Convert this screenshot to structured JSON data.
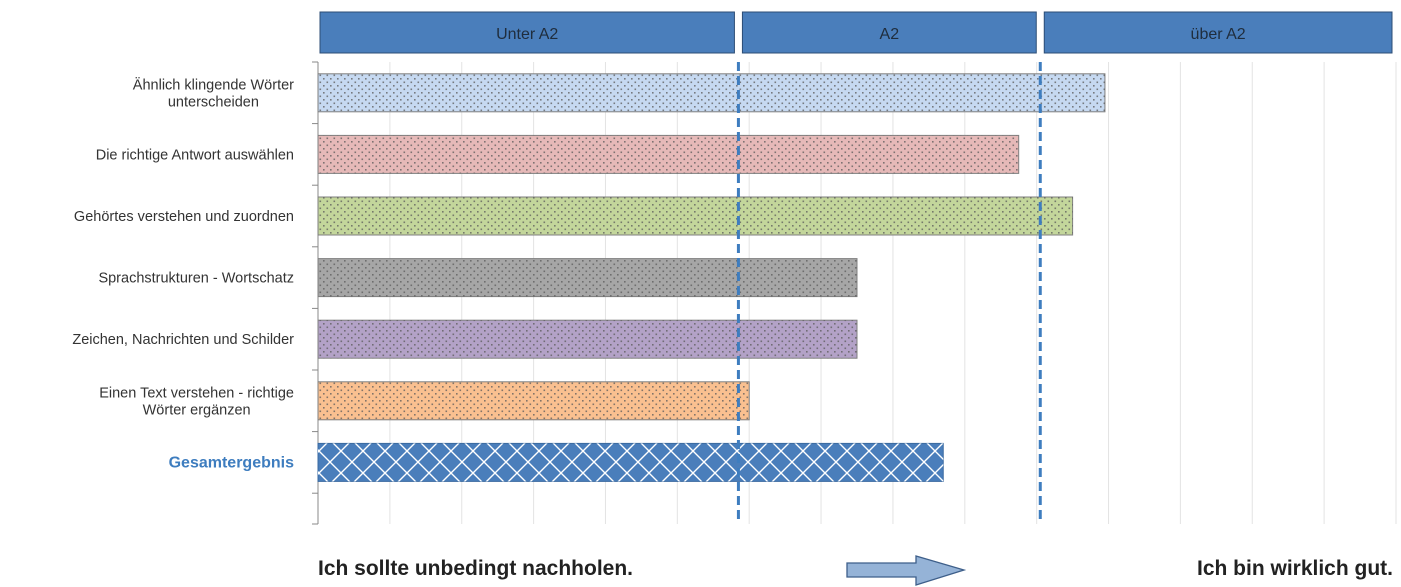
{
  "chart_data": {
    "type": "bar",
    "orientation": "horizontal",
    "bands": [
      "Unter A2",
      "A2",
      "über A2"
    ],
    "categories": [
      [
        "Ähnlich klingende Wörter",
        "unterscheiden"
      ],
      [
        "Die richtige Antwort auswählen"
      ],
      [
        "Gehörtes verstehen und zuordnen"
      ],
      [
        "Sprachstrukturen - Wortschatz"
      ],
      [
        "Zeichen, Nachrichten und Schilder"
      ],
      [
        "Einen Text verstehen - richtige",
        "Wörter ergänzen"
      ],
      [
        "Gesamtergebnis"
      ]
    ],
    "values": [
      0.73,
      0.65,
      0.7,
      0.5,
      0.5,
      0.4,
      0.58
    ],
    "colors": [
      "#c6d9f1",
      "#e6b9b8",
      "#c3d69b",
      "#a6a6a6",
      "#b3a2c7",
      "#fac090",
      "#4a7ebb"
    ],
    "total_color": "#3e7dbf",
    "band_color": "#4a7ebb",
    "xlim": [
      0,
      1
    ],
    "thresholds": [
      0.39,
      0.67
    ],
    "grid": true,
    "footer": {
      "left": "Ich sollte unbedingt nachholen.",
      "right": "Ich bin wirklich gut."
    }
  }
}
